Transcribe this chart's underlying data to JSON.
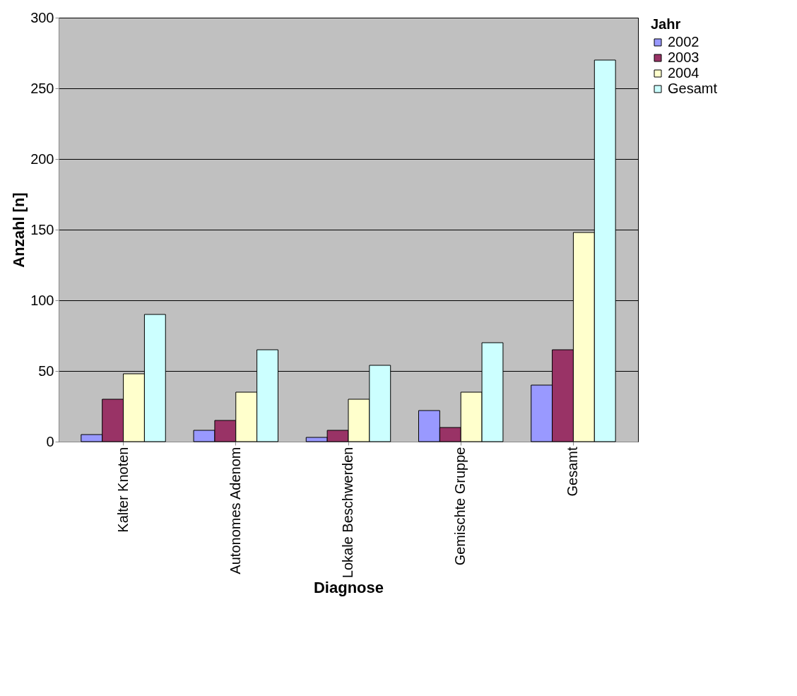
{
  "chart_data": {
    "type": "bar",
    "xlabel": "Diagnose",
    "ylabel": "Anzahl [n]",
    "legend_title": "Jahr",
    "categories": [
      "Kalter Knoten",
      "Autonomes Adenom",
      "Lokale Beschwerden",
      "Gemischte Gruppe",
      "Gesamt"
    ],
    "series": [
      {
        "name": "2002",
        "color": "#9999ff",
        "values": [
          5,
          8,
          3,
          22,
          40
        ]
      },
      {
        "name": "2003",
        "color": "#993366",
        "values": [
          30,
          15,
          8,
          10,
          65
        ]
      },
      {
        "name": "2004",
        "color": "#ffffcc",
        "values": [
          48,
          35,
          30,
          35,
          148
        ]
      },
      {
        "name": "Gesamt",
        "color": "#ccffff",
        "values": [
          90,
          65,
          54,
          70,
          270
        ]
      }
    ],
    "ylim": [
      0,
      300
    ],
    "yticks": [
      0,
      50,
      100,
      150,
      200,
      250,
      300
    ],
    "grid": "y",
    "legend": "right"
  }
}
